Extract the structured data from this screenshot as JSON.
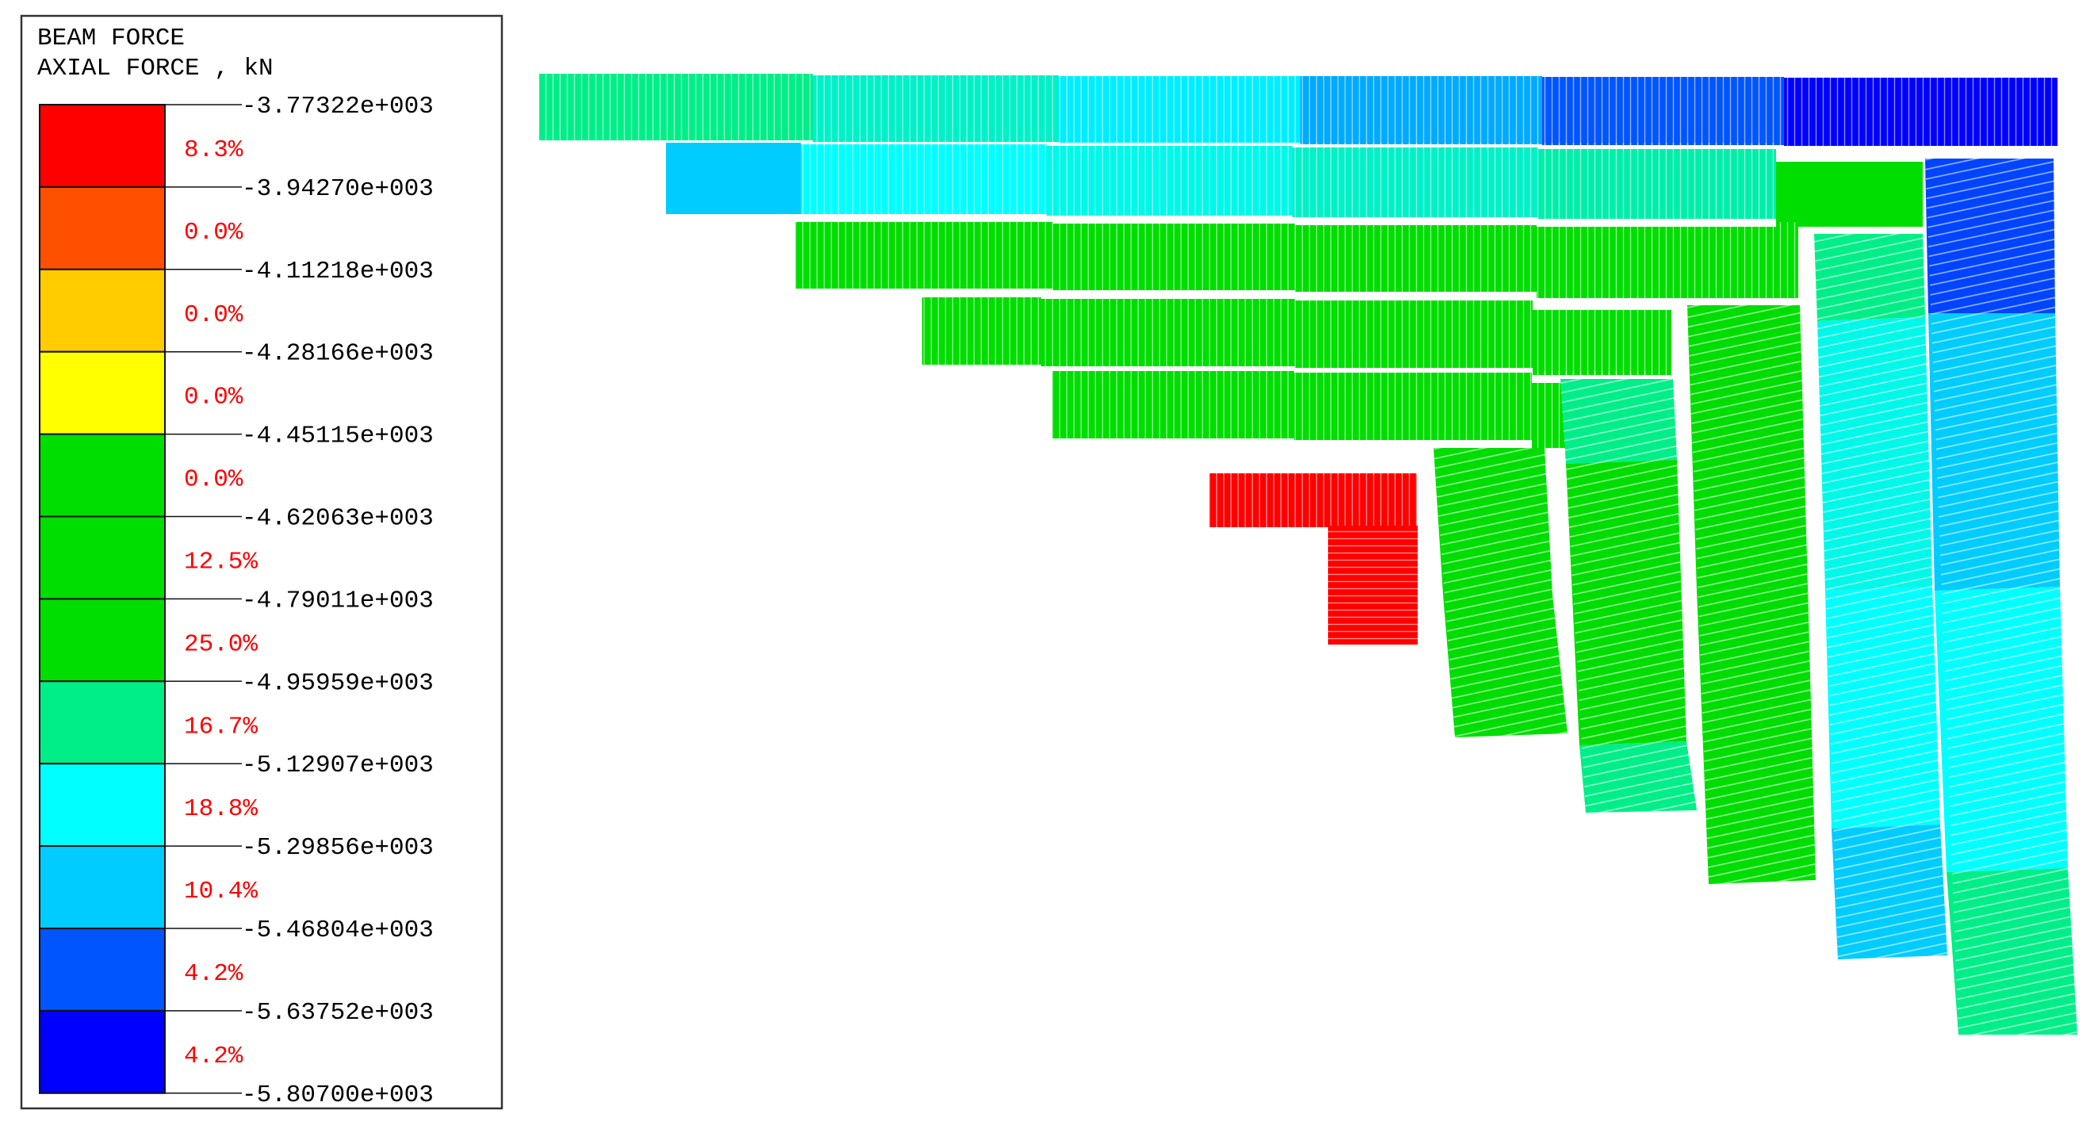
{
  "legend": {
    "title_line1": "BEAM FORCE",
    "title_line2": "AXIAL FORCE , kN",
    "values": [
      "-3.77322e+003",
      "-3.94270e+003",
      "-4.11218e+003",
      "-4.28166e+003",
      "-4.45115e+003",
      "-4.62063e+003",
      "-4.79011e+003",
      "-4.95959e+003",
      "-5.12907e+003",
      "-5.29856e+003",
      "-5.46804e+003",
      "-5.63752e+003",
      "-5.80700e+003"
    ],
    "bands": [
      {
        "color": "#ff0000",
        "percent": "8.3%"
      },
      {
        "color": "#ff5000",
        "percent": "0.0%"
      },
      {
        "color": "#ffcc00",
        "percent": "0.0%"
      },
      {
        "color": "#ffff00",
        "percent": "0.0%"
      },
      {
        "color": "#00dd00",
        "percent": "0.0%"
      },
      {
        "color": "#00dd00",
        "percent": "12.5%"
      },
      {
        "color": "#00dd00",
        "percent": "25.0%"
      },
      {
        "color": "#00ee88",
        "percent": "16.7%"
      },
      {
        "color": "#00ffff",
        "percent": "18.8%"
      },
      {
        "color": "#00ccff",
        "percent": "10.4%"
      },
      {
        "color": "#0055ff",
        "percent": "4.2%"
      },
      {
        "color": "#0000ff",
        "percent": "4.2%"
      }
    ],
    "percent_color": "#ff0000"
  }
}
